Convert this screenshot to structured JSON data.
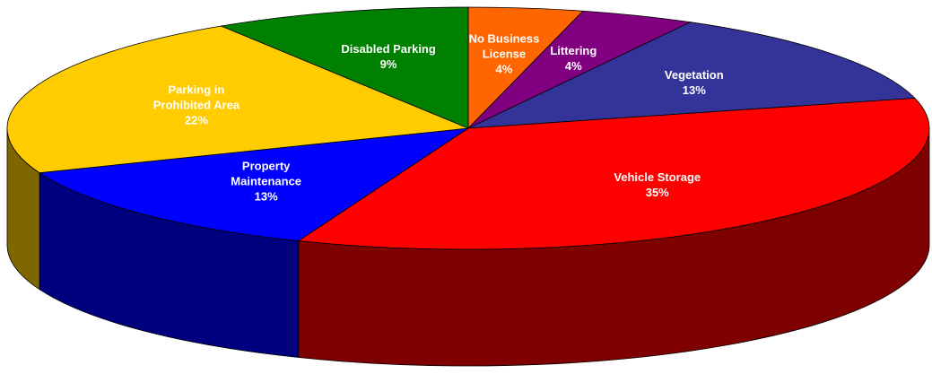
{
  "chart_data": {
    "type": "pie",
    "categories": [
      "No Business License",
      "Littering",
      "Vegetation",
      "Vehicle Storage",
      "Property Maintenance",
      "Parking in Prohibited Area",
      "Disabled Parking"
    ],
    "values": [
      4,
      4,
      13,
      35,
      13,
      22,
      9
    ],
    "value_labels": [
      "4%",
      "4%",
      "13%",
      "35%",
      "13%",
      "22%",
      "9%"
    ],
    "colors": [
      "#ff6600",
      "#800080",
      "#333399",
      "#ff0000",
      "#0000ff",
      "#ffcc00",
      "#008000"
    ]
  }
}
